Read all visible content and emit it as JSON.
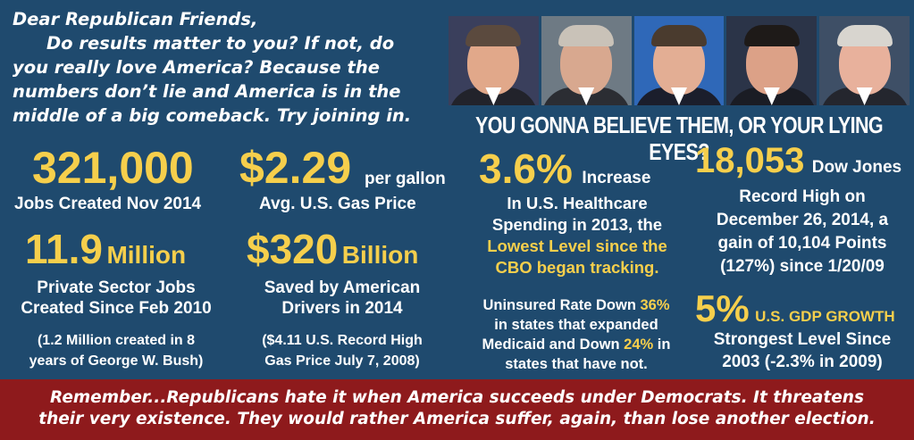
{
  "intro": {
    "line1": "Dear Republican Friends,",
    "line2": "Do results matter to you? If not, do",
    "line3": "you really love America? Because the",
    "line4": "numbers don’t lie and America is in the",
    "line5": "middle of a big comeback. Try joining in."
  },
  "tagline": "YOU GONNA BELIEVE THEM, OR YOUR LYING EYES?",
  "jobs": {
    "number": "321,000",
    "label": "Jobs Created Nov 2014"
  },
  "gas": {
    "number": "$2.29",
    "unit": "per gallon",
    "label": "Avg. U.S. Gas Price"
  },
  "private_jobs": {
    "number": "11.9",
    "unit": "Million",
    "line1": "Private Sector Jobs",
    "line2": "Created Since Feb 2010",
    "note1": "(1.2 Million created in 8",
    "note2": "years of George W. Bush)"
  },
  "savings": {
    "number": "$320",
    "unit": "Billion",
    "line1": "Saved by American",
    "line2": "Drivers in 2014",
    "note1": "($4.11 U.S. Record High",
    "note2": "Gas Price July 7, 2008)"
  },
  "healthcare": {
    "number": "3.6%",
    "unit": "Increase",
    "line1": "In U.S. Healthcare",
    "line2": "Spending in 2013, the",
    "line3": "Lowest Level since the",
    "line4": "CBO began tracking."
  },
  "uninsured": {
    "l1a": "Uninsured Rate Down ",
    "l1b": "36%",
    "l2": "in states that expanded",
    "l3a": "Medicaid and Down ",
    "l3b": "24%",
    "l3c": " in",
    "l4": "states that have not."
  },
  "dow": {
    "number": "18,053",
    "unit": "Dow Jones",
    "line1": "Record High on",
    "line2": "December 26, 2014, a",
    "line3": "gain of 10,104 Points",
    "line4": "(127%) since 1/20/09"
  },
  "gdp": {
    "number": "5%",
    "unit": "U.S. GDP GROWTH",
    "line1": "Strongest Level Since",
    "line2": "2003 (-2.3% in 2009)"
  },
  "footer": {
    "line1": "Remember...Republicans hate it when America succeeds under Democrats. It threatens",
    "line2": "their very existence. They would rather America suffer, again, than lose another election."
  },
  "colors": {
    "background": "#1f4a6e",
    "highlight": "#f6cf4c",
    "footer": "#8e1a1c"
  },
  "photos": [
    {
      "name": "photo-1",
      "bg": "#3a3f5c",
      "skin": "#e1a88a",
      "hair": "#5b4a3e",
      "suit": "#22232b"
    },
    {
      "name": "photo-2",
      "bg": "#6e7a84",
      "skin": "#d8a88f",
      "hair": "#c9c2b8",
      "suit": "#2b2d33"
    },
    {
      "name": "photo-3",
      "bg": "#2f68b8",
      "skin": "#e3ae94",
      "hair": "#4a3b2e",
      "suit": "#1b1e2c"
    },
    {
      "name": "photo-4",
      "bg": "#2b3448",
      "skin": "#dca187",
      "hair": "#1e1a18",
      "suit": "#1a1c24"
    },
    {
      "name": "photo-5",
      "bg": "#3e4f66",
      "skin": "#e8b19c",
      "hair": "#d8d5cf",
      "suit": "#24262e"
    }
  ]
}
